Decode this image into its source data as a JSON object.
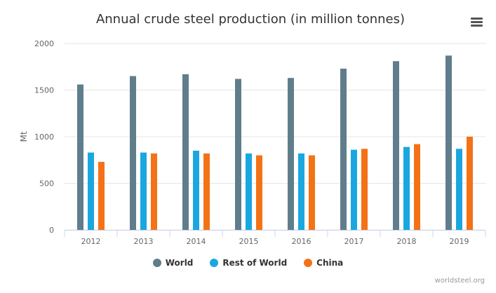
{
  "menu_icon": "hamburger-menu-icon",
  "credits": "worldsteel.org",
  "chart_data": {
    "type": "bar",
    "title": "Annual crude steel production (in million tonnes)",
    "ylabel": "Mt",
    "xlabel": "",
    "ylim": [
      0,
      2000
    ],
    "yticks": [
      0,
      500,
      1000,
      1500,
      2000
    ],
    "grid": true,
    "legend_position": "bottom",
    "categories": [
      "2012",
      "2013",
      "2014",
      "2015",
      "2016",
      "2017",
      "2018",
      "2019"
    ],
    "series": [
      {
        "name": "World",
        "color": "#607d8b",
        "values": [
          1560,
          1650,
          1670,
          1620,
          1630,
          1730,
          1810,
          1870
        ]
      },
      {
        "name": "Rest of World",
        "color": "#1aa7e0",
        "values": [
          830,
          830,
          850,
          820,
          820,
          860,
          890,
          870
        ]
      },
      {
        "name": "China",
        "color": "#f47216",
        "values": [
          730,
          820,
          820,
          800,
          800,
          870,
          920,
          1000
        ]
      }
    ]
  }
}
